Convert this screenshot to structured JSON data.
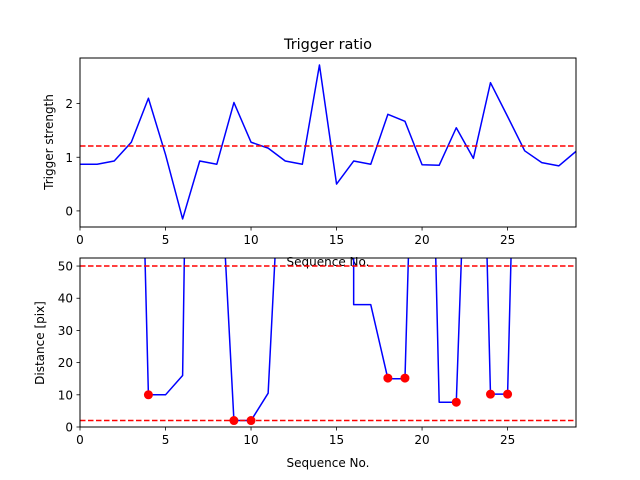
{
  "chart_data": [
    {
      "type": "line",
      "title": "Trigger ratio",
      "xlabel": "Sequence No.",
      "ylabel": "Trigger strength",
      "xlim": [
        0,
        29
      ],
      "ylim": [
        -0.3,
        2.85
      ],
      "xticks": [
        0,
        5,
        10,
        15,
        20,
        25
      ],
      "yticks": [
        0,
        1,
        2
      ],
      "grid": false,
      "series": [
        {
          "color": "#0000ff",
          "x": [
            0,
            1,
            2,
            3,
            4,
            5,
            6,
            7,
            8,
            9,
            10,
            11,
            12,
            13,
            14,
            15,
            16,
            17,
            18,
            19,
            20,
            21,
            22,
            23,
            24,
            25,
            26,
            27,
            28,
            29
          ],
          "values": [
            0.87,
            0.87,
            0.93,
            1.28,
            2.1,
            1.05,
            -0.15,
            0.93,
            0.87,
            2.02,
            1.28,
            1.17,
            0.93,
            0.87,
            2.72,
            0.5,
            0.93,
            0.87,
            1.8,
            1.67,
            0.86,
            0.85,
            1.55,
            0.98,
            2.39,
            1.76,
            1.12,
            0.9,
            0.84,
            1.11
          ]
        }
      ],
      "hlines": [
        {
          "y": 1.21,
          "color": "#ff0000",
          "style": "dashed"
        }
      ]
    },
    {
      "type": "line",
      "title": "",
      "xlabel": "Sequence No.",
      "ylabel": "Distance [pix]",
      "xlim": [
        0,
        29
      ],
      "ylim": [
        0,
        52.5
      ],
      "xticks": [
        0,
        5,
        10,
        15,
        20,
        25
      ],
      "yticks": [
        0,
        10,
        20,
        30,
        40,
        50
      ],
      "grid": false,
      "series": [
        {
          "color": "#0000ff",
          "segments": [
            {
              "x": [
                3.8,
                4,
                5,
                6,
                6.1
              ],
              "y": [
                52.5,
                10,
                10,
                16,
                52.5
              ]
            },
            {
              "x": [
                8.5,
                9,
                10,
                11,
                11.4
              ],
              "y": [
                52.5,
                2,
                2,
                10.5,
                52.5
              ]
            },
            {
              "x": [
                16,
                16,
                17,
                18,
                19,
                19.2
              ],
              "y": [
                52.5,
                38,
                38,
                15,
                15,
                52.5
              ]
            },
            {
              "x": [
                20.8,
                21,
                22,
                22.3
              ],
              "y": [
                52.5,
                7.7,
                7.7,
                52.5
              ]
            },
            {
              "x": [
                23.8,
                24,
                25,
                25.2
              ],
              "y": [
                52.5,
                10.2,
                10.2,
                52.5
              ]
            }
          ]
        }
      ],
      "markers": {
        "color": "#ff0000",
        "x": [
          4,
          9,
          10,
          18,
          19,
          22,
          24,
          25
        ],
        "y": [
          10,
          2,
          2,
          15.2,
          15.2,
          7.7,
          10.2,
          10.2
        ]
      },
      "hlines": [
        {
          "y": 50,
          "color": "#ff0000",
          "style": "dashed"
        },
        {
          "y": 2,
          "color": "#ff0000",
          "style": "dashed"
        }
      ]
    }
  ]
}
